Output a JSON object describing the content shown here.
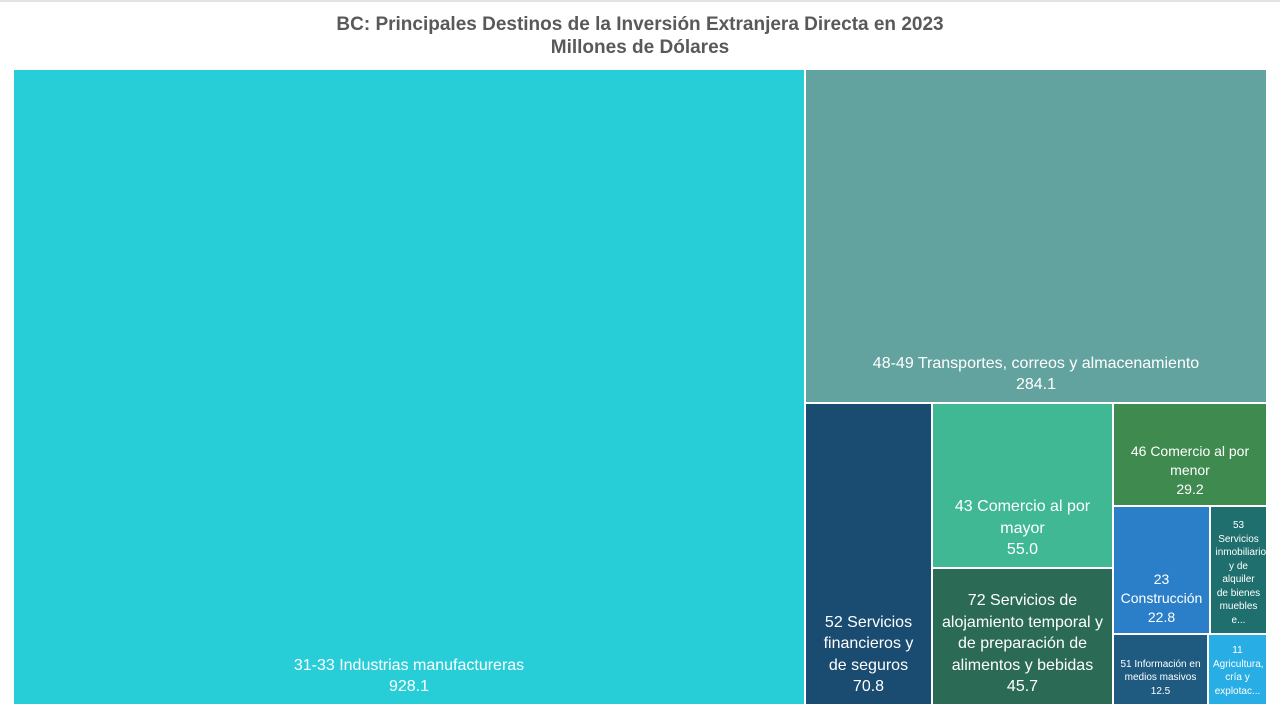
{
  "chart_data": {
    "type": "treemap",
    "title": "BC: Principales Destinos de la Inversión Extranjera Directa en 2023",
    "subtitle": "Millones de Dólares",
    "items": [
      {
        "name": "31-33 Industrias manufactureras",
        "value": 928.1,
        "value_label": "928.1",
        "color": "#27ced8"
      },
      {
        "name": "48-49 Transportes, correos y almacenamiento",
        "value": 284.1,
        "value_label": "284.1",
        "color": "#63a39f"
      },
      {
        "name": "52 Servicios financieros y de seguros",
        "value": 70.8,
        "value_label": "70.8",
        "color": "#1a4b70"
      },
      {
        "name": "43 Comercio al por mayor",
        "value": 55.0,
        "value_label": "55.0",
        "color": "#40b893"
      },
      {
        "name": "72 Servicios de alojamiento temporal y de preparación de alimentos y bebidas",
        "value": 45.7,
        "value_label": "45.7",
        "color": "#2b6b55"
      },
      {
        "name": "46 Comercio al por menor",
        "value": 29.2,
        "value_label": "29.2",
        "color": "#3f8a4e"
      },
      {
        "name": "23 Construcción",
        "value": 22.8,
        "value_label": "22.8",
        "color": "#2a7fc8"
      },
      {
        "name": "53 Servicios inmobiliarios y de alquiler de bienes muebles e...",
        "value": null,
        "value_label": "",
        "color": "#1e6f6d"
      },
      {
        "name": "51 Información en medios masivos",
        "value": 12.5,
        "value_label": "12.5",
        "color": "#1f5b80"
      },
      {
        "name": "11 Agricultura, cría y explotac...",
        "value": null,
        "value_label": "",
        "color": "#28aee4"
      }
    ]
  }
}
